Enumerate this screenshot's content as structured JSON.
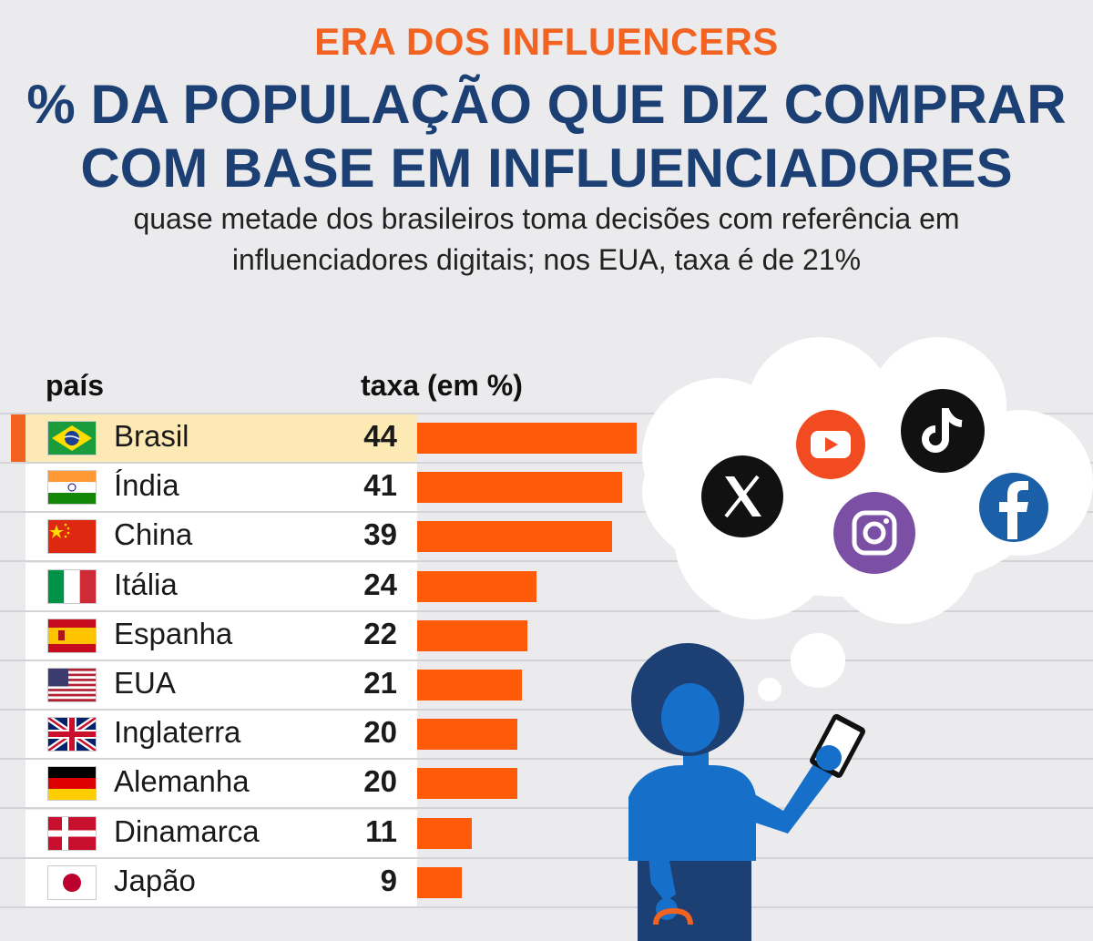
{
  "header": {
    "kicker": "ERA DOS INFLUENCERS",
    "title_line1": "% DA POPULAÇÃO QUE DIZ COMPRAR",
    "title_line2": "COM BASE EM INFLUENCIADORES",
    "subtitle_line1": "quase metade dos brasileiros toma decisões com referência em",
    "subtitle_line2": "influenciadores digitais; nos EUA, taxa é de 21%"
  },
  "columns": {
    "country": "país",
    "rate": "taxa (em %)"
  },
  "chart_data": {
    "type": "bar",
    "orientation": "horizontal",
    "title": "% DA POPULAÇÃO QUE DIZ COMPRAR COM BASE EM INFLUENCIADORES",
    "subtitle": "quase metade dos brasileiros toma decisões com referência em influenciadores digitais; nos EUA, taxa é de 21%",
    "xlabel": "taxa (em %)",
    "ylabel": "país",
    "categories": [
      "Brasil",
      "Índia",
      "China",
      "Itália",
      "Espanha",
      "EUA",
      "Inglaterra",
      "Alemanha",
      "Dinamarca",
      "Japão"
    ],
    "values": [
      44,
      41,
      39,
      24,
      22,
      21,
      20,
      20,
      11,
      9
    ],
    "highlight": "Brasil",
    "bar_color": "#ff5a0a",
    "highlight_row_color": "#fde9b3",
    "xlim": [
      0,
      44
    ],
    "grid": false
  },
  "flags": [
    "brazil-flag-icon",
    "india-flag-icon",
    "china-flag-icon",
    "italy-flag-icon",
    "spain-flag-icon",
    "usa-flag-icon",
    "uk-flag-icon",
    "germany-flag-icon",
    "denmark-flag-icon",
    "japan-flag-icon"
  ],
  "illustration": {
    "icons": [
      "x-logo-icon",
      "youtube-logo-icon",
      "tiktok-logo-icon",
      "instagram-logo-icon",
      "facebook-logo-icon"
    ],
    "brand_colors": {
      "x": "#111111",
      "youtube": "#f24b22",
      "tiktok": "#111111",
      "instagram": "#7b4fa3",
      "facebook": "#1a5fa8"
    },
    "person_color": "#1670c9",
    "hair_color": "#1c3f74"
  },
  "colors": {
    "accent": "#f26322",
    "title": "#1c3f74",
    "background": "#ebebed"
  }
}
